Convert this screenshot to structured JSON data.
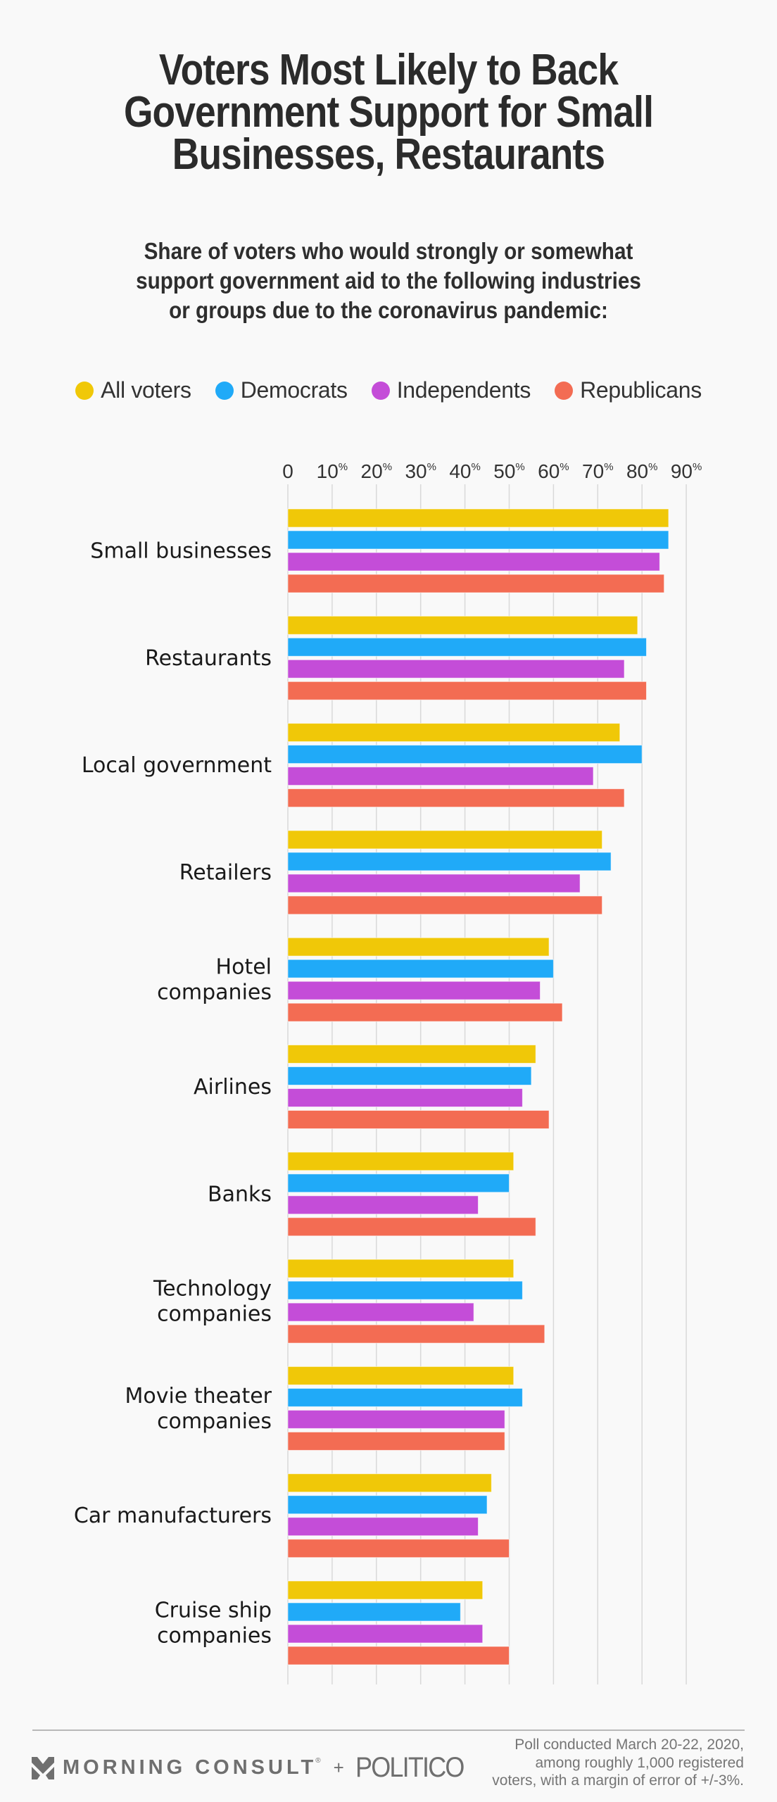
{
  "title": {
    "lines": [
      "Voters Most Likely to Back",
      "Government Support for Small",
      "Businesses, Restaurants"
    ]
  },
  "subtitle": {
    "lines": [
      "Share of voters who would strongly or somewhat",
      "support government aid to the following industries",
      "or groups due to the coronavirus pandemic:"
    ]
  },
  "legend": [
    {
      "label": "All voters",
      "color": "#F0C808"
    },
    {
      "label": "Democrats",
      "color": "#20AAF8"
    },
    {
      "label": "Independents",
      "color": "#C44DD8"
    },
    {
      "label": "Republicans",
      "color": "#F36C53"
    }
  ],
  "chart_data": {
    "type": "bar",
    "orientation": "horizontal",
    "title": "Voters Most Likely to Back Government Support for Small Businesses, Restaurants",
    "subtitle": "Share of voters who would strongly or somewhat support government aid to the following industries or groups due to the coronavirus pandemic:",
    "xlabel": "",
    "ylabel": "",
    "xlim": [
      0,
      90
    ],
    "grid": true,
    "legend_position": "top",
    "x_ticks": [
      0,
      10,
      20,
      30,
      40,
      50,
      60,
      70,
      80,
      90
    ],
    "x_tick_labels": [
      {
        "num": "0",
        "suffix": ""
      },
      {
        "num": "10",
        "suffix": "%"
      },
      {
        "num": "20",
        "suffix": "%"
      },
      {
        "num": "30",
        "suffix": "%"
      },
      {
        "num": "40",
        "suffix": "%"
      },
      {
        "num": "50",
        "suffix": "%"
      },
      {
        "num": "60",
        "suffix": "%"
      },
      {
        "num": "70",
        "suffix": "%"
      },
      {
        "num": "80",
        "suffix": "%"
      },
      {
        "num": "90",
        "suffix": "%"
      }
    ],
    "categories": [
      [
        "Small businesses"
      ],
      [
        "Restaurants"
      ],
      [
        "Local government"
      ],
      [
        "Retailers"
      ],
      [
        "Hotel",
        "companies"
      ],
      [
        "Airlines"
      ],
      [
        "Banks"
      ],
      [
        "Technology",
        "companies"
      ],
      [
        "Movie theater",
        "companies"
      ],
      [
        "Car manufacturers"
      ],
      [
        "Cruise ship",
        "companies"
      ]
    ],
    "series": [
      {
        "name": "All voters",
        "color": "#F0C808",
        "values": [
          86,
          79,
          75,
          71,
          59,
          56,
          51,
          51,
          51,
          46,
          44
        ]
      },
      {
        "name": "Democrats",
        "color": "#20AAF8",
        "values": [
          86,
          81,
          80,
          73,
          60,
          55,
          50,
          53,
          53,
          45,
          39
        ]
      },
      {
        "name": "Independents",
        "color": "#C44DD8",
        "values": [
          84,
          76,
          69,
          66,
          57,
          53,
          43,
          42,
          49,
          43,
          44
        ]
      },
      {
        "name": "Republicans",
        "color": "#F36C53",
        "values": [
          85,
          81,
          76,
          71,
          62,
          59,
          56,
          58,
          49,
          50,
          50
        ]
      }
    ]
  },
  "footer": {
    "brand_1": "MORNING CONSULT",
    "brand_1_reg": "®",
    "plus": "+",
    "brand_2": "POLITICO",
    "note_lines": [
      "Poll conducted March 20-22, 2020,",
      "among roughly 1,000 registered",
      "voters, with a margin of error of +/-3%."
    ]
  }
}
